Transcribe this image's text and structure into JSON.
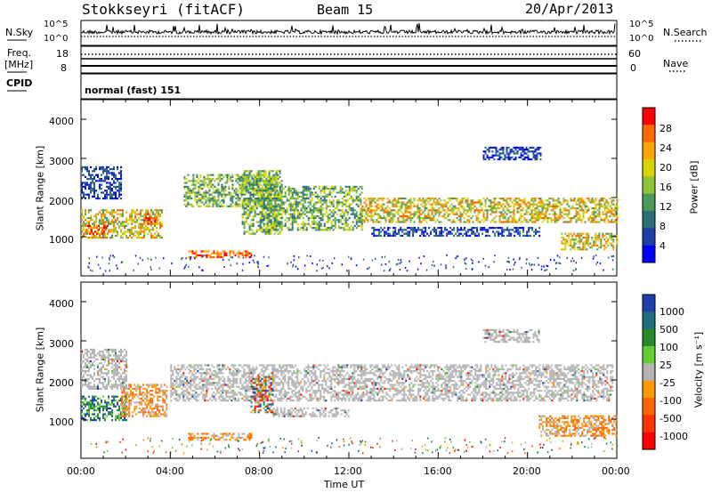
{
  "header": {
    "station": "Stokkseyri (fitACF)",
    "beam": "Beam 15",
    "date": "20/Apr/2013"
  },
  "left_labels": {
    "nsky": "N.Sky",
    "freq": "Freq.",
    "freq_unit": "[MHz]",
    "cpid": "CPID"
  },
  "right_labels": {
    "nsearch": "N.Search",
    "nave": "Nave"
  },
  "cpid_text": "normal (fast) 151",
  "colors": {
    "power": [
      "#0000ff",
      "#1e3fa8",
      "#2c6e78",
      "#4a9a5a",
      "#8fc33a",
      "#d8d400",
      "#ffa500",
      "#ff6a00",
      "#ff0000"
    ],
    "velocity": [
      "#1f3fb0",
      "#1f6f80",
      "#2a8a2a",
      "#66cc33",
      "#b4b4b4",
      "#ff9900",
      "#ff6600",
      "#ff3300",
      "#ff0000"
    ]
  },
  "chart_data": [
    {
      "type": "line",
      "panel": "noise",
      "left_axis": {
        "label": "N.Sky",
        "ticks": [
          "10^5",
          "10^0"
        ],
        "scale": "log"
      },
      "right_axis": {
        "label": "N.Search",
        "ticks": [
          "10^5",
          "10^0"
        ],
        "scale": "log"
      }
    },
    {
      "type": "line",
      "panel": "frequency",
      "left_axis": {
        "label": "Freq. [MHz]",
        "ticks": [
          "18",
          "8"
        ],
        "ylim": [
          8,
          18
        ]
      },
      "right_axis": {
        "label": "Nave",
        "ticks": [
          "60",
          "0"
        ],
        "ylim": [
          0,
          60
        ]
      }
    },
    {
      "type": "heatmap",
      "panel": "power",
      "ylabel": "Slant Range [km]",
      "yticks": [
        "1000",
        "2000",
        "3000",
        "4000"
      ],
      "ylim": [
        0,
        4500
      ],
      "xlim_hours": [
        0,
        24
      ],
      "colorbar": {
        "label": "Power [dB]",
        "ticks": [
          "4",
          "8",
          "12",
          "16",
          "20",
          "24",
          "28"
        ],
        "range": [
          0,
          32
        ]
      },
      "regions": [
        {
          "t0": 0.0,
          "t1": 3.6,
          "r0": 1000,
          "r1": 1700,
          "level": "high"
        },
        {
          "t0": 0.2,
          "t1": 1.2,
          "r0": 1100,
          "r1": 1300,
          "level": "peak"
        },
        {
          "t0": 2.8,
          "t1": 3.4,
          "r0": 1350,
          "r1": 1600,
          "level": "peak"
        },
        {
          "t0": 0.0,
          "t1": 1.8,
          "r0": 2000,
          "r1": 2800,
          "level": "low"
        },
        {
          "t0": 4.8,
          "t1": 7.6,
          "r0": 500,
          "r1": 650,
          "level": "peak"
        },
        {
          "t0": 4.6,
          "t1": 8.8,
          "r0": 1800,
          "r1": 2600,
          "level": "mid"
        },
        {
          "t0": 7.2,
          "t1": 9.0,
          "r0": 1100,
          "r1": 2700,
          "level": "mid"
        },
        {
          "t0": 8.0,
          "t1": 12.6,
          "r0": 1200,
          "r1": 2300,
          "level": "mid"
        },
        {
          "t0": 12.5,
          "t1": 24.0,
          "r0": 1400,
          "r1": 2000,
          "level": "high"
        },
        {
          "t0": 13.0,
          "t1": 20.5,
          "r0": 1050,
          "r1": 1250,
          "level": "low"
        },
        {
          "t0": 18.0,
          "t1": 20.6,
          "r0": 3000,
          "r1": 3300,
          "level": "low"
        },
        {
          "t0": 21.5,
          "t1": 24.0,
          "r0": 700,
          "r1": 1100,
          "level": "high"
        }
      ]
    },
    {
      "type": "heatmap",
      "panel": "velocity",
      "ylabel": "Slant Range [km]",
      "yticks": [
        "1000",
        "2000",
        "3000",
        "4000"
      ],
      "ylim": [
        0,
        4500
      ],
      "xlim_hours": [
        0,
        24
      ],
      "xticks": [
        "00:00",
        "04:00",
        "08:00",
        "12:00",
        "16:00",
        "20:00",
        "00:00"
      ],
      "xlabel": "Time UT",
      "colorbar": {
        "label": "Velocity [m s⁻¹]",
        "ticks": [
          "1000",
          "500",
          "100",
          "25",
          "-25",
          "-100",
          "-500",
          "-1000"
        ]
      },
      "regions": [
        {
          "t0": 0.0,
          "t1": 2.0,
          "r0": 1000,
          "r1": 1600,
          "level": "pos"
        },
        {
          "t0": 1.8,
          "t1": 3.8,
          "r0": 1100,
          "r1": 1900,
          "level": "neg"
        },
        {
          "t0": 0.0,
          "t1": 2.0,
          "r0": 1800,
          "r1": 2800,
          "level": "zero"
        },
        {
          "t0": 4.8,
          "t1": 7.6,
          "r0": 500,
          "r1": 650,
          "level": "neg"
        },
        {
          "t0": 4.0,
          "t1": 23.8,
          "r0": 1500,
          "r1": 2400,
          "level": "zero"
        },
        {
          "t0": 7.6,
          "t1": 8.6,
          "r0": 1200,
          "r1": 2100,
          "level": "mixed"
        },
        {
          "t0": 8.6,
          "t1": 12.0,
          "r0": 1100,
          "r1": 1300,
          "level": "zero"
        },
        {
          "t0": 18.0,
          "t1": 20.5,
          "r0": 3000,
          "r1": 3300,
          "level": "zero"
        },
        {
          "t0": 20.5,
          "t1": 24.0,
          "r0": 600,
          "r1": 1100,
          "level": "neg"
        }
      ]
    }
  ]
}
